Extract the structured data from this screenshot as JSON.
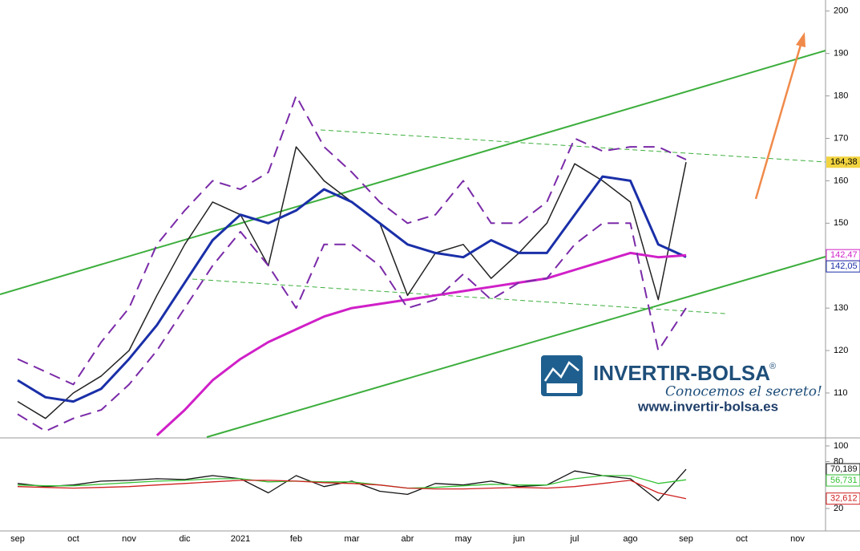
{
  "chart_data": {
    "type": "line",
    "categories": [
      "sep",
      null,
      "oct",
      null,
      "nov",
      null,
      "dic",
      null,
      "2021",
      null,
      "feb",
      null,
      "mar",
      null,
      "abr",
      null,
      "may",
      null,
      "jun",
      null,
      "jul",
      null,
      "ago",
      null,
      "sep",
      null,
      "oct",
      null,
      "nov"
    ],
    "ylim": [
      99.6,
      202.6
    ],
    "yticks": [
      110,
      120,
      130,
      140,
      150,
      160,
      170,
      180,
      190,
      200
    ],
    "series": [
      {
        "color": "#222222",
        "line_style": "thin",
        "label_fill": "#f2d440",
        "values": [
          108,
          104,
          110,
          114,
          120,
          133,
          145,
          155,
          152,
          140,
          168,
          160,
          155,
          150,
          133,
          143,
          145,
          137,
          143,
          150,
          164,
          160,
          155,
          132,
          164.38,
          null,
          null,
          null,
          null
        ],
        "value_labels": [
          null,
          null,
          null,
          null,
          null,
          null,
          null,
          null,
          null,
          null,
          null,
          null,
          null,
          null,
          null,
          null,
          null,
          null,
          null,
          null,
          null,
          null,
          null,
          null,
          "164,38",
          null,
          null,
          null,
          null
        ]
      },
      {
        "color": "#1a2fa8",
        "line_style": "solid",
        "values": [
          113,
          109,
          108,
          111,
          118,
          126,
          136,
          146,
          152,
          150,
          153,
          158,
          155,
          150,
          145,
          143,
          142,
          146,
          143,
          143,
          152,
          161,
          160,
          145,
          142.05,
          null,
          null,
          null,
          null
        ],
        "value_labels": [
          null,
          null,
          null,
          null,
          null,
          null,
          null,
          null,
          null,
          null,
          null,
          null,
          null,
          null,
          null,
          null,
          null,
          null,
          null,
          null,
          null,
          null,
          null,
          null,
          "142,05",
          null,
          null,
          null,
          null
        ]
      },
      {
        "color": "#d020c8",
        "line_style": "solid",
        "values": [
          null,
          null,
          null,
          null,
          null,
          100,
          106,
          113,
          118,
          122,
          125,
          128,
          130,
          131,
          132,
          133,
          134,
          135,
          136,
          137,
          139,
          141,
          143,
          142,
          142.47,
          null,
          null,
          null,
          null
        ],
        "value_labels": [
          null,
          null,
          null,
          null,
          null,
          null,
          null,
          null,
          null,
          null,
          null,
          null,
          null,
          null,
          null,
          null,
          null,
          null,
          null,
          null,
          null,
          null,
          null,
          null,
          "142,47",
          null,
          null,
          null,
          null
        ]
      },
      {
        "color": "#7a2aa8",
        "line_style": "dashed",
        "values": [
          118,
          115,
          112,
          122,
          130,
          145,
          153,
          160,
          158,
          162,
          180,
          168,
          162,
          155,
          150,
          152,
          160,
          150,
          150,
          155,
          170,
          167,
          168,
          168,
          165,
          null,
          null,
          null,
          null
        ]
      },
      {
        "color": "#7a2aa8",
        "line_style": "dashed",
        "values": [
          105,
          101,
          104,
          106,
          112,
          120,
          130,
          140,
          148,
          140,
          130,
          145,
          145,
          140,
          130,
          132,
          138,
          132,
          136,
          137,
          145,
          150,
          150,
          120,
          130,
          null,
          null,
          null,
          null
        ]
      }
    ],
    "indicator": {
      "ylim": [
        -6.7,
        108.2
      ],
      "yticks": [
        100,
        80,
        20
      ],
      "series": [
        {
          "color": "#111111",
          "values": [
            52,
            48,
            50,
            55,
            56,
            58,
            57,
            62,
            58,
            40,
            62,
            48,
            55,
            42,
            38,
            52,
            50,
            55,
            48,
            50,
            68,
            62,
            58,
            30,
            70.189,
            null,
            null,
            null,
            null
          ],
          "value_labels": [
            null,
            null,
            null,
            null,
            null,
            null,
            null,
            null,
            null,
            null,
            null,
            null,
            null,
            null,
            null,
            null,
            null,
            null,
            null,
            null,
            null,
            null,
            null,
            null,
            "70,189",
            null,
            null,
            null,
            null
          ]
        },
        {
          "color": "#36c236",
          "values": [
            50,
            49,
            49,
            51,
            53,
            55,
            56,
            58,
            58,
            54,
            55,
            54,
            54,
            50,
            46,
            47,
            49,
            51,
            50,
            50,
            58,
            62,
            62,
            52,
            56.731,
            null,
            null,
            null,
            null
          ],
          "value_labels": [
            null,
            null,
            null,
            null,
            null,
            null,
            null,
            null,
            null,
            null,
            null,
            null,
            null,
            null,
            null,
            null,
            null,
            null,
            null,
            null,
            null,
            null,
            null,
            null,
            "56,731",
            null,
            null,
            null,
            null
          ]
        },
        {
          "color": "#d02020",
          "values": [
            48,
            47,
            46,
            47,
            48,
            50,
            52,
            54,
            56,
            56,
            55,
            53,
            52,
            50,
            46,
            45,
            45,
            46,
            47,
            46,
            48,
            52,
            56,
            40,
            32.612,
            null,
            null,
            null,
            null
          ],
          "value_labels": [
            null,
            null,
            null,
            null,
            null,
            null,
            null,
            null,
            null,
            null,
            null,
            null,
            null,
            null,
            null,
            null,
            null,
            null,
            null,
            null,
            null,
            null,
            null,
            null,
            "32,612",
            null,
            null,
            null,
            null
          ]
        }
      ]
    }
  },
  "logo": {
    "name": "INVERTIR-BOLSA",
    "mark": "®",
    "slogan": "Conocemos el secreto!",
    "url": "www.invertir-bolsa.es"
  }
}
